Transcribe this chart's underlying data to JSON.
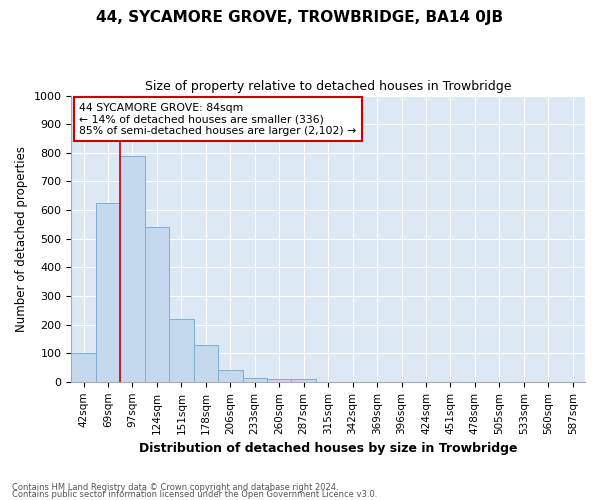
{
  "title": "44, SYCAMORE GROVE, TROWBRIDGE, BA14 0JB",
  "subtitle": "Size of property relative to detached houses in Trowbridge",
  "xlabel": "Distribution of detached houses by size in Trowbridge",
  "ylabel": "Number of detached properties",
  "categories": [
    "42sqm",
    "69sqm",
    "97sqm",
    "124sqm",
    "151sqm",
    "178sqm",
    "206sqm",
    "233sqm",
    "260sqm",
    "287sqm",
    "315sqm",
    "342sqm",
    "369sqm",
    "396sqm",
    "424sqm",
    "451sqm",
    "478sqm",
    "505sqm",
    "533sqm",
    "560sqm",
    "587sqm"
  ],
  "values": [
    100,
    625,
    790,
    540,
    220,
    130,
    40,
    15,
    10,
    10,
    0,
    0,
    0,
    0,
    0,
    0,
    0,
    0,
    0,
    0,
    0
  ],
  "bar_color": "#c5d9ee",
  "bar_edge_color": "#7aafd4",
  "red_line_x": 1.5,
  "annotation_line1": "44 SYCAMORE GROVE: 84sqm",
  "annotation_line2": "← 14% of detached houses are smaller (336)",
  "annotation_line3": "85% of semi-detached houses are larger (2,102) →",
  "annotation_box_color": "#ffffff",
  "annotation_box_edge": "#cc0000",
  "ylim": [
    0,
    1000
  ],
  "yticks": [
    0,
    100,
    200,
    300,
    400,
    500,
    600,
    700,
    800,
    900,
    1000
  ],
  "footer1": "Contains HM Land Registry data © Crown copyright and database right 2024.",
  "footer2": "Contains public sector information licensed under the Open Government Licence v3.0.",
  "fig_bg_color": "#ffffff",
  "plot_bg_color": "#dde8f5"
}
